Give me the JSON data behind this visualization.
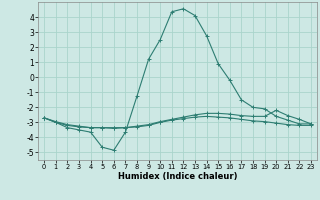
{
  "xlabel": "Humidex (Indice chaleur)",
  "background_color": "#cde8e4",
  "grid_color": "#aad4cc",
  "line_color": "#2d7d72",
  "xlim": [
    -0.5,
    23.5
  ],
  "ylim": [
    -5.5,
    5.0
  ],
  "xticks": [
    0,
    1,
    2,
    3,
    4,
    5,
    6,
    7,
    8,
    9,
    10,
    11,
    12,
    13,
    14,
    15,
    16,
    17,
    18,
    19,
    20,
    21,
    22,
    23
  ],
  "yticks": [
    -5,
    -4,
    -3,
    -2,
    -1,
    0,
    1,
    2,
    3,
    4
  ],
  "series": [
    {
      "x": [
        0,
        1,
        2,
        3,
        4,
        5,
        6,
        7,
        8,
        9,
        10,
        11,
        12,
        13,
        14,
        15,
        16,
        17,
        18,
        19,
        20,
        21,
        22,
        23
      ],
      "y": [
        -2.7,
        -3.0,
        -3.35,
        -3.5,
        -3.65,
        -4.65,
        -4.85,
        -3.65,
        -1.25,
        1.2,
        2.5,
        4.35,
        4.55,
        4.1,
        2.75,
        0.9,
        -0.2,
        -1.5,
        -2.0,
        -2.1,
        -2.6,
        -2.85,
        -3.1,
        -3.1
      ]
    },
    {
      "x": [
        0,
        1,
        2,
        3,
        4,
        5,
        6,
        7,
        8,
        9,
        10,
        11,
        12,
        13,
        14,
        15,
        16,
        17,
        18,
        19,
        20,
        21,
        22,
        23
      ],
      "y": [
        -2.7,
        -3.0,
        -3.2,
        -3.3,
        -3.35,
        -3.35,
        -3.35,
        -3.35,
        -3.3,
        -3.2,
        -3.0,
        -2.85,
        -2.75,
        -2.65,
        -2.6,
        -2.65,
        -2.7,
        -2.8,
        -2.9,
        -2.95,
        -3.05,
        -3.15,
        -3.2,
        -3.2
      ]
    },
    {
      "x": [
        0,
        1,
        2,
        3,
        4,
        5,
        6,
        7,
        8,
        9,
        10,
        11,
        12,
        13,
        14,
        15,
        16,
        17,
        18,
        19,
        20,
        21,
        22,
        23
      ],
      "y": [
        -2.7,
        -2.95,
        -3.15,
        -3.25,
        -3.35,
        -3.35,
        -3.4,
        -3.35,
        -3.25,
        -3.15,
        -2.95,
        -2.8,
        -2.65,
        -2.5,
        -2.4,
        -2.4,
        -2.45,
        -2.55,
        -2.6,
        -2.6,
        -2.2,
        -2.55,
        -2.8,
        -3.1
      ]
    }
  ]
}
